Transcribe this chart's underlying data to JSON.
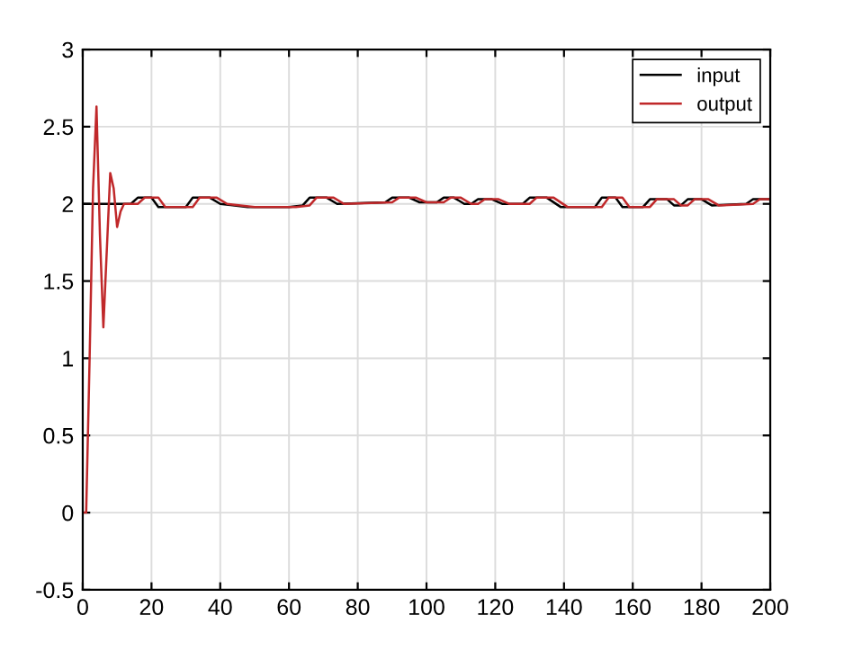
{
  "chart_data": {
    "type": "line",
    "xlim": [
      0,
      200
    ],
    "ylim": [
      -0.5,
      3
    ],
    "xticks": [
      0,
      20,
      40,
      60,
      80,
      100,
      120,
      140,
      160,
      180,
      200
    ],
    "yticks": [
      -0.5,
      0,
      0.5,
      1,
      1.5,
      2,
      2.5,
      3
    ],
    "grid": true,
    "legend": "top right",
    "line_style": "solid",
    "marker": "none",
    "series": [
      {
        "name": "input",
        "color": "#000000",
        "x": [
          0,
          14,
          16,
          20,
          22,
          30,
          32,
          37,
          40,
          48,
          60,
          64,
          66,
          71,
          74,
          88,
          90,
          95,
          98,
          103,
          105,
          108,
          111,
          113,
          115,
          119,
          122,
          128,
          130,
          135,
          139,
          149,
          151,
          155,
          157,
          163,
          165,
          170,
          172,
          174,
          176,
          180,
          183,
          193,
          195,
          200
        ],
        "values": [
          2.0,
          2.0,
          2.04,
          2.04,
          1.98,
          1.98,
          2.04,
          2.04,
          2.0,
          1.98,
          1.98,
          1.99,
          2.04,
          2.04,
          2.0,
          2.01,
          2.04,
          2.04,
          2.01,
          2.01,
          2.04,
          2.04,
          2.0,
          2.0,
          2.03,
          2.03,
          2.0,
          2.0,
          2.04,
          2.04,
          1.98,
          1.98,
          2.04,
          2.04,
          1.98,
          1.98,
          2.03,
          2.03,
          1.99,
          1.99,
          2.03,
          2.03,
          1.99,
          2.0,
          2.03,
          2.03
        ]
      },
      {
        "name": "output",
        "color": "#c0282a",
        "x": [
          0,
          1,
          2,
          3,
          4,
          5,
          6,
          7,
          8,
          9,
          10,
          11,
          12,
          16,
          18,
          22,
          24,
          32,
          34,
          39,
          42,
          50,
          62,
          66,
          68,
          73,
          76,
          90,
          92,
          97,
          100,
          105,
          107,
          110,
          113,
          115,
          117,
          121,
          124,
          130,
          132,
          137,
          141,
          151,
          153,
          157,
          159,
          165,
          167,
          172,
          174,
          176,
          178,
          182,
          185,
          195,
          197,
          200
        ],
        "values": [
          0,
          0,
          1.0,
          2.1,
          2.63,
          1.8,
          1.2,
          1.7,
          2.2,
          2.1,
          1.85,
          1.95,
          2.0,
          2.0,
          2.04,
          2.04,
          1.98,
          1.98,
          2.04,
          2.04,
          2.0,
          1.98,
          1.98,
          1.99,
          2.04,
          2.04,
          2.0,
          2.01,
          2.04,
          2.04,
          2.01,
          2.01,
          2.04,
          2.04,
          2.0,
          2.0,
          2.03,
          2.03,
          2.0,
          2.0,
          2.04,
          2.04,
          1.98,
          1.98,
          2.04,
          2.04,
          1.98,
          1.98,
          2.03,
          2.03,
          1.99,
          1.99,
          2.03,
          2.03,
          1.99,
          2.0,
          2.03,
          2.03
        ]
      }
    ]
  }
}
